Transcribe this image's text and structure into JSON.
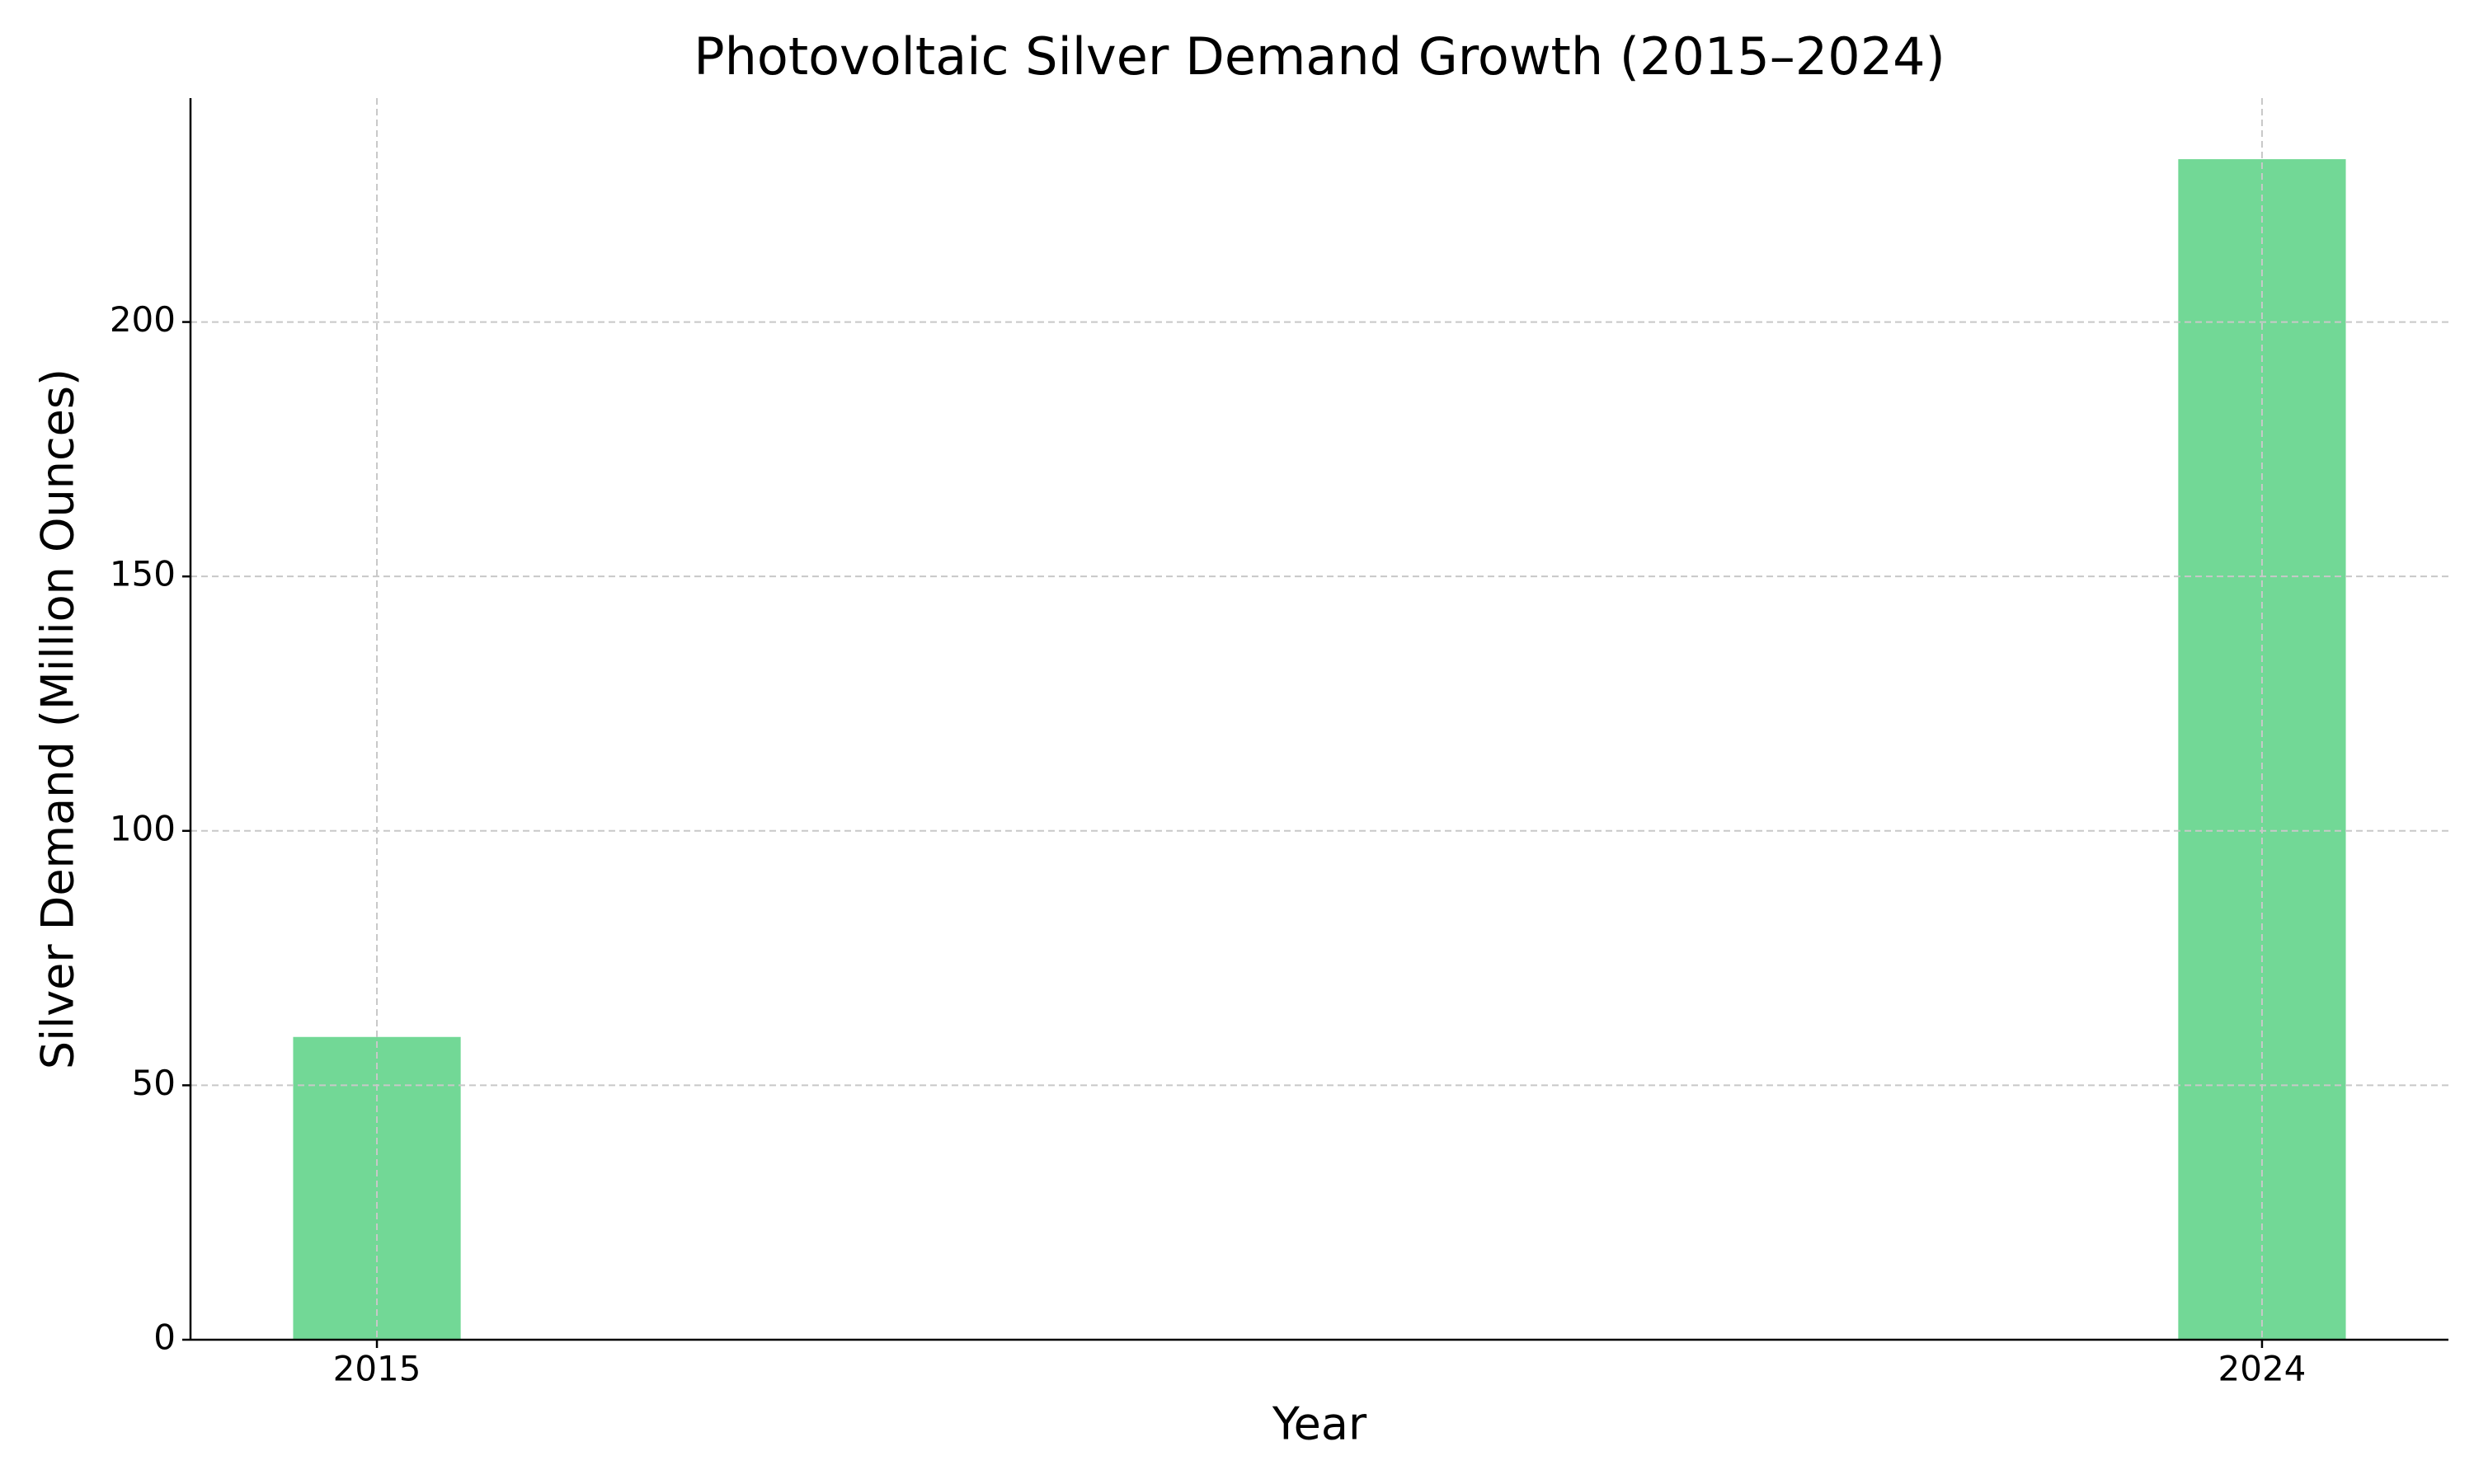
{
  "chart_data": {
    "type": "bar",
    "title": "Photovoltaic Silver Demand Growth (2015–2024)",
    "x_label": "Year",
    "y_label": "Silver Demand (Million Ounces)",
    "x": [
      2015,
      2024
    ],
    "values": [
      59.5,
      232
    ],
    "color": "#72d896",
    "xlim": [
      2014.11,
      2024.89
    ],
    "xticks": [
      2015,
      2024
    ],
    "ylim": [
      0,
      244
    ],
    "yticks": [
      0,
      50,
      100,
      150,
      200
    ],
    "grid": true
  }
}
